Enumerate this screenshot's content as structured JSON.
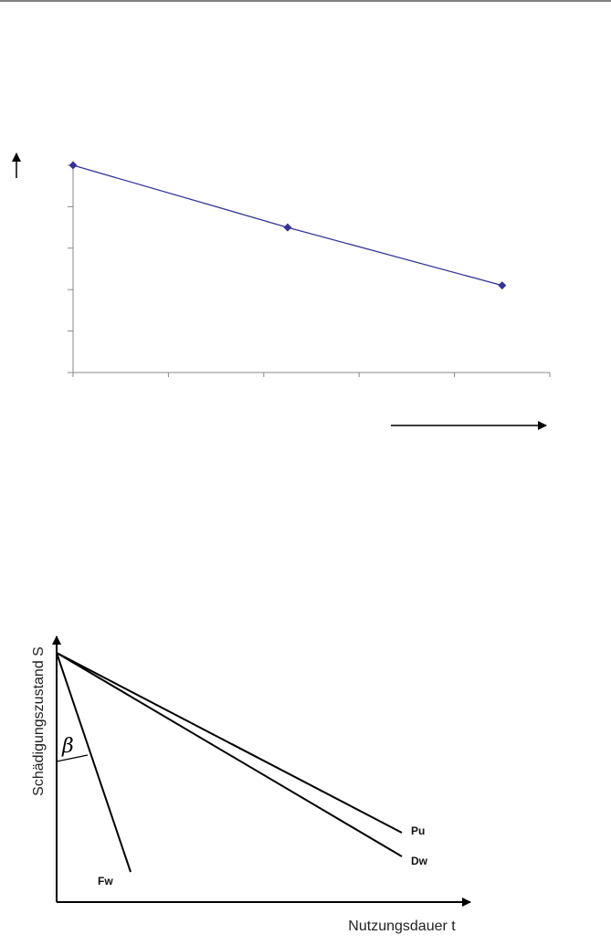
{
  "chart_data": {
    "type": "line",
    "x": [
      0,
      2.25,
      4.5
    ],
    "values": [
      5,
      3.5,
      2.1
    ],
    "color": "#333399",
    "xlim": [
      0,
      5
    ],
    "xticks": [
      0,
      1,
      2,
      3,
      4,
      5
    ],
    "ylim": [
      0,
      5
    ],
    "yticks": [
      0,
      1,
      2,
      3,
      4,
      5
    ]
  },
  "diagram": {
    "y_label": "Schädigungszustand S",
    "x_label": "Nutzungsdauer t",
    "angle_label": "β",
    "lines": [
      {
        "label": "Pu"
      },
      {
        "label": "Dw"
      },
      {
        "label": "Fw"
      }
    ]
  }
}
